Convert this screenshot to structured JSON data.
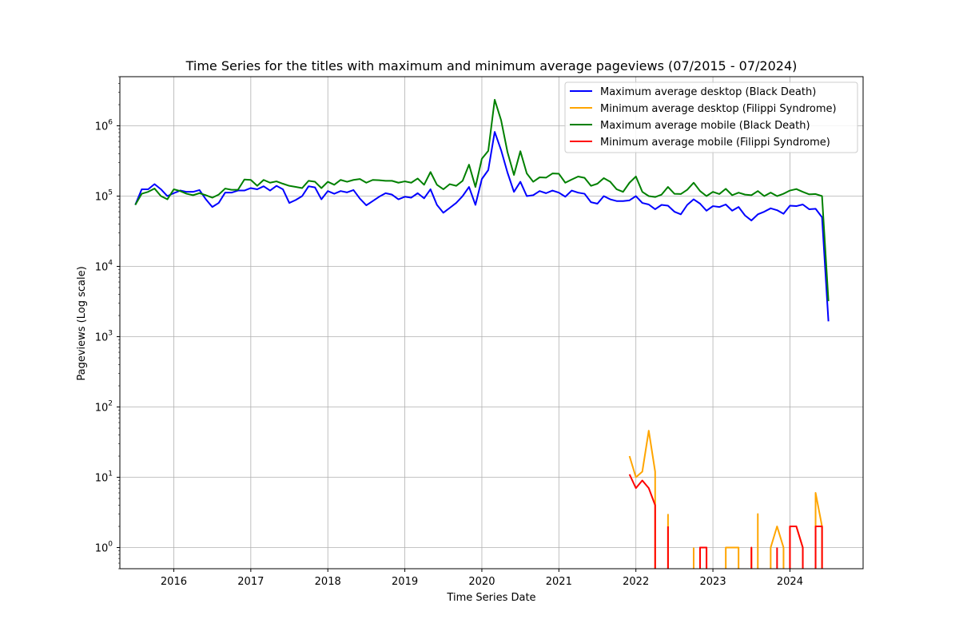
{
  "chart_data": {
    "type": "line",
    "title": "Time Series for the titles with maximum and minimum average pageviews (07/2015 - 07/2024)",
    "xlabel": "Time Series Date",
    "ylabel": "Pageviews (Log scale)",
    "yscale": "log",
    "xlim": [
      2015.3,
      2024.95
    ],
    "ylim": [
      0.5,
      5000000
    ],
    "grid": true,
    "legend_position": "top-right",
    "x_ticks": [
      2016,
      2017,
      2018,
      2019,
      2020,
      2021,
      2022,
      2023,
      2024
    ],
    "x_tick_labels": [
      "2016",
      "2017",
      "2018",
      "2019",
      "2020",
      "2021",
      "2022",
      "2023",
      "2024"
    ],
    "y_ticks": [
      {
        "value": 1,
        "base": "10",
        "exp": "0"
      },
      {
        "value": 10,
        "base": "10",
        "exp": "1"
      },
      {
        "value": 100,
        "base": "10",
        "exp": "2"
      },
      {
        "value": 1000,
        "base": "10",
        "exp": "3"
      },
      {
        "value": 10000,
        "base": "10",
        "exp": "4"
      },
      {
        "value": 100000,
        "base": "10",
        "exp": "5"
      },
      {
        "value": 1000000,
        "base": "10",
        "exp": "6"
      }
    ],
    "series": [
      {
        "name": "Maximum average desktop (Black Death)",
        "color": "#0000ff",
        "start": [
          2015,
          7
        ],
        "values": [
          75000,
          125000,
          125000,
          148000,
          125000,
          100000,
          110000,
          120000,
          115000,
          115000,
          122000,
          90000,
          70000,
          80000,
          112000,
          112000,
          120000,
          120000,
          130000,
          125000,
          138000,
          120000,
          140000,
          125000,
          80000,
          88000,
          100000,
          138000,
          133000,
          90000,
          118000,
          108000,
          118000,
          113000,
          122000,
          92000,
          74000,
          85000,
          98000,
          110000,
          105000,
          90000,
          98000,
          95000,
          110000,
          93000,
          125000,
          75000,
          58000,
          68000,
          80000,
          100000,
          135000,
          75000,
          175000,
          235000,
          820000,
          450000,
          215000,
          115000,
          160000,
          100000,
          103000,
          118000,
          110000,
          120000,
          112000,
          98000,
          120000,
          112000,
          108000,
          82000,
          78000,
          100000,
          90000,
          85000,
          85000,
          87000,
          100000,
          80000,
          76000,
          65000,
          75000,
          73000,
          60000,
          55000,
          75000,
          90000,
          78000,
          62000,
          72000,
          70000,
          76000,
          62000,
          70000,
          53000,
          45000,
          55000,
          60000,
          67000,
          63000,
          56000,
          73000,
          72000,
          76000,
          65000,
          66000,
          50000,
          1650
        ]
      },
      {
        "name": "Minimum average desktop (Filippi Syndrome)",
        "color": "#ffa500",
        "segments": [
          {
            "x": [
              2021.917,
              2022.0,
              2022.083,
              2022.167,
              2022.25,
              2022.25
            ],
            "y": [
              20,
              10,
              12,
              46,
              12,
              0.5
            ]
          },
          {
            "x": [
              2022.417,
              2022.417
            ],
            "y": [
              0.5,
              3
            ]
          },
          {
            "x": [
              2022.75,
              2022.75
            ],
            "y": [
              0.5,
              1
            ]
          },
          {
            "x": [
              2022.833,
              2022.833,
              2022.917,
              2022.917
            ],
            "y": [
              0.5,
              1,
              1,
              0.5
            ]
          },
          {
            "x": [
              2023.167,
              2023.167,
              2023.25,
              2023.333,
              2023.333
            ],
            "y": [
              0.5,
              1,
              1,
              1,
              0.5
            ]
          },
          {
            "x": [
              2023.5,
              2023.5
            ],
            "y": [
              0.5,
              1
            ]
          },
          {
            "x": [
              2023.583,
              2023.583,
              2023.583
            ],
            "y": [
              0.5,
              3,
              0.5
            ]
          },
          {
            "x": [
              2023.75,
              2023.75,
              2023.833,
              2023.917,
              2023.917
            ],
            "y": [
              0.5,
              1,
              2,
              1,
              0.5
            ]
          },
          {
            "x": [
              2024.0,
              2024.0,
              2024.083,
              2024.167,
              2024.167
            ],
            "y": [
              0.5,
              2,
              2,
              1,
              0.5
            ]
          },
          {
            "x": [
              2024.333,
              2024.333,
              2024.417,
              2024.417
            ],
            "y": [
              0.5,
              6,
              2,
              0.5
            ]
          }
        ]
      },
      {
        "name": "Maximum average mobile (Black Death)",
        "color": "#008000",
        "start": [
          2015,
          7
        ],
        "values": [
          75000,
          108000,
          115000,
          128000,
          100000,
          90000,
          125000,
          118000,
          108000,
          103000,
          110000,
          103000,
          95000,
          105000,
          128000,
          123000,
          123000,
          172000,
          170000,
          140000,
          170000,
          155000,
          162000,
          150000,
          140000,
          135000,
          130000,
          165000,
          160000,
          130000,
          160000,
          145000,
          170000,
          160000,
          170000,
          175000,
          155000,
          170000,
          168000,
          165000,
          165000,
          155000,
          162000,
          155000,
          178000,
          145000,
          220000,
          145000,
          125000,
          148000,
          140000,
          165000,
          280000,
          135000,
          340000,
          440000,
          2350000,
          1200000,
          420000,
          200000,
          435000,
          210000,
          160000,
          185000,
          183000,
          210000,
          208000,
          155000,
          172000,
          190000,
          182000,
          140000,
          150000,
          180000,
          160000,
          125000,
          115000,
          155000,
          190000,
          115000,
          100000,
          97000,
          105000,
          135000,
          108000,
          107000,
          123000,
          155000,
          118000,
          100000,
          115000,
          107000,
          127000,
          103000,
          112000,
          105000,
          103000,
          118000,
          100000,
          112000,
          100000,
          108000,
          120000,
          126000,
          115000,
          106000,
          107000,
          100000,
          3200
        ]
      },
      {
        "name": "Minimum average mobile (Filippi Syndrome)",
        "color": "#ff0000",
        "segments": [
          {
            "x": [
              2021.917,
              2022.0,
              2022.083,
              2022.167,
              2022.25,
              2022.25
            ],
            "y": [
              11,
              7,
              9,
              7,
              4,
              0.5
            ]
          },
          {
            "x": [
              2022.417,
              2022.417
            ],
            "y": [
              0.5,
              2
            ]
          },
          {
            "x": [
              2022.833,
              2022.833,
              2022.917,
              2022.917
            ],
            "y": [
              0.5,
              1,
              1,
              0.5
            ]
          },
          {
            "x": [
              2023.5,
              2023.5,
              2023.5
            ],
            "y": [
              0.5,
              1,
              0.5
            ]
          },
          {
            "x": [
              2023.833,
              2023.833
            ],
            "y": [
              0.5,
              1
            ]
          },
          {
            "x": [
              2024.0,
              2024.0,
              2024.083,
              2024.167,
              2024.167
            ],
            "y": [
              0.5,
              2,
              2,
              1,
              0.5
            ]
          },
          {
            "x": [
              2024.333,
              2024.333,
              2024.417,
              2024.417
            ],
            "y": [
              0.5,
              2,
              2,
              0.5
            ]
          }
        ]
      }
    ]
  }
}
